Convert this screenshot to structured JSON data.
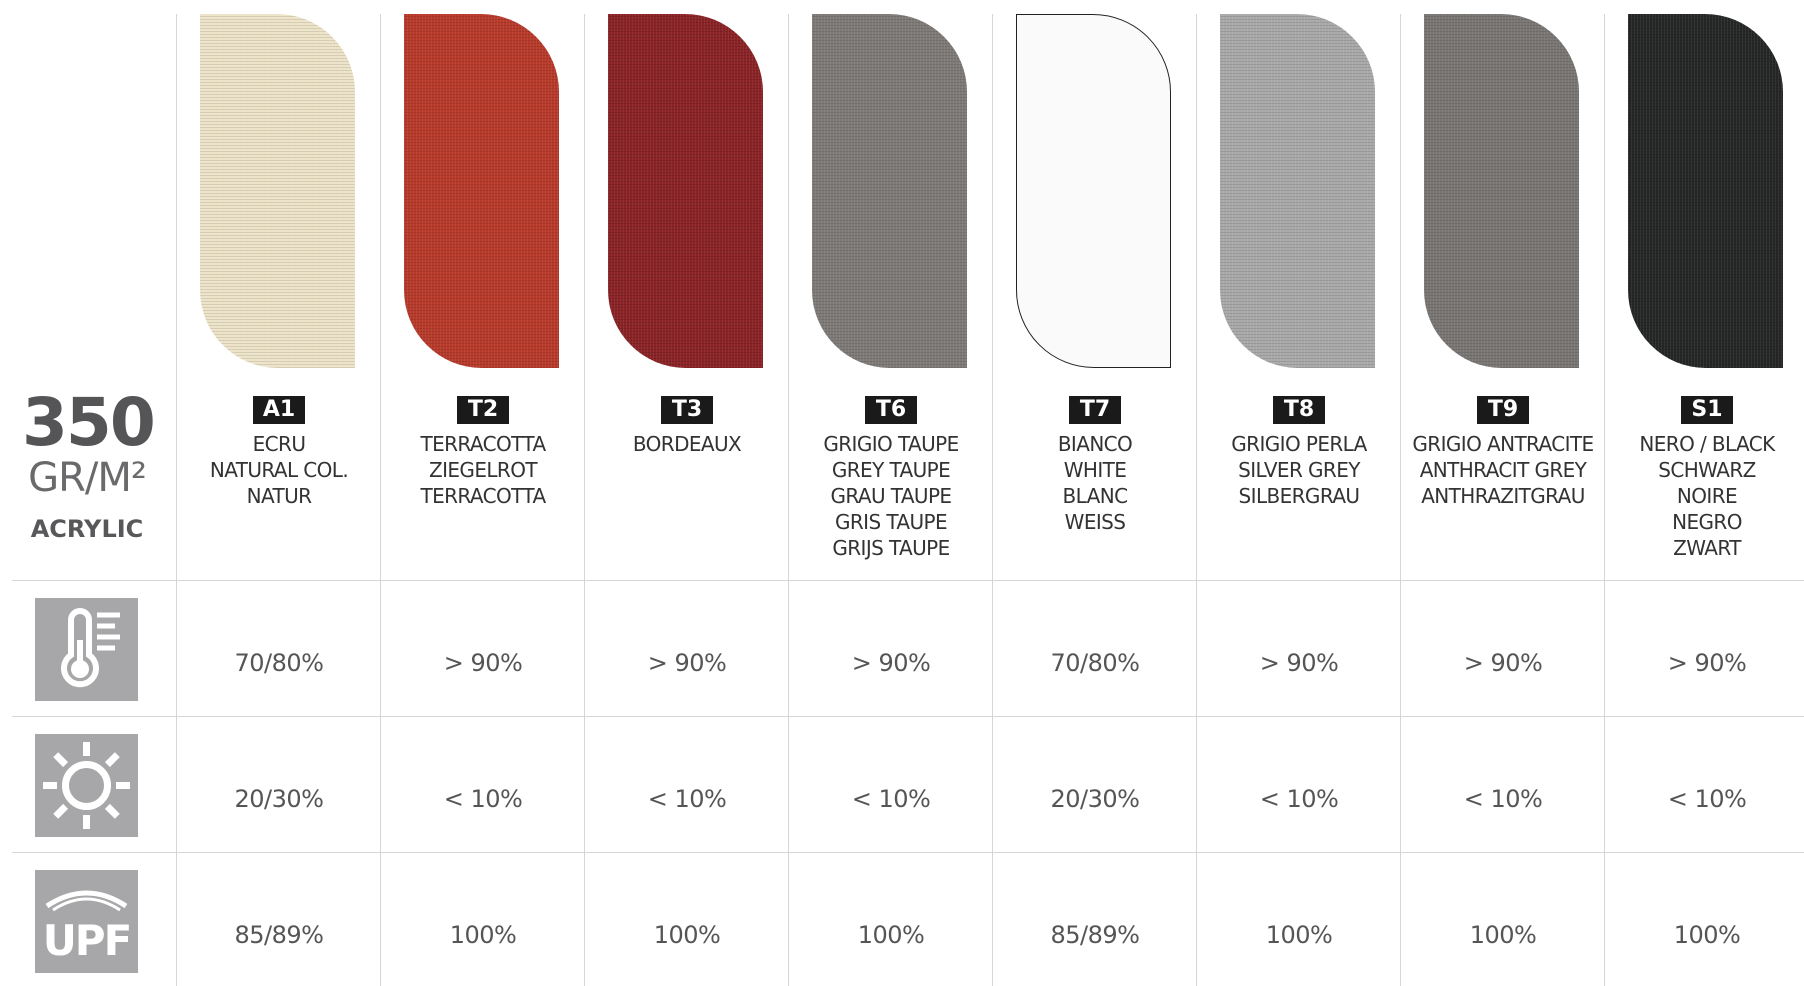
{
  "header": {
    "weight": "350",
    "unit": "GR/M²",
    "material": "ACRYLIC"
  },
  "colors": {
    "grid_line": "#d6d6d6",
    "icon_bg": "#a7a7a9",
    "code_badge": "#1a1a1a"
  },
  "rows": {
    "heat_icon": "thermometer-icon",
    "light_icon": "sun-icon",
    "uv_icon": "upf-icon",
    "upf_label": "UPF"
  },
  "swatches": [
    {
      "code": "A1",
      "color": "#ede3c8",
      "names": [
        "ECRU",
        "NATURAL COL.",
        "NATUR"
      ],
      "heat": "70/80%",
      "light": "20/30%",
      "upf": "85/89%"
    },
    {
      "code": "T2",
      "color": "#b83a2a",
      "names": [
        "TERRACOTTA",
        "ZIEGELROT",
        "TERRACOTTA"
      ],
      "heat": "> 90%",
      "light": "< 10%",
      "upf": "100%"
    },
    {
      "code": "T3",
      "color": "#8a2226",
      "names": [
        "BORDEAUX"
      ],
      "heat": "> 90%",
      "light": "< 10%",
      "upf": "100%"
    },
    {
      "code": "T6",
      "color": "#7e7a77",
      "names": [
        "GRIGIO TAUPE",
        "GREY TAUPE",
        "GRAU TAUPE",
        "GRIS TAUPE",
        "GRIJS TAUPE"
      ],
      "heat": "> 90%",
      "light": "< 10%",
      "upf": "100%"
    },
    {
      "code": "T7",
      "color": "#fafafa",
      "names": [
        "BIANCO",
        "WHITE",
        "BLANC",
        "WEISS"
      ],
      "heat": "70/80%",
      "light": "20/30%",
      "upf": "85/89%"
    },
    {
      "code": "T8",
      "color": "#a9a9a9",
      "names": [
        "GRIGIO PERLA",
        "SILVER GREY",
        "SILBERGRAU"
      ],
      "heat": "> 90%",
      "light": "< 10%",
      "upf": "100%"
    },
    {
      "code": "T9",
      "color": "#797674",
      "names": [
        "GRIGIO ANTRACITE",
        "ANTHRACIT GREY",
        "ANTHRAZITGRAU"
      ],
      "heat": "> 90%",
      "light": "< 10%",
      "upf": "100%"
    },
    {
      "code": "S1",
      "color": "#252727",
      "names": [
        "NERO / BLACK",
        "SCHWARZ",
        "NOIRE",
        "NEGRO",
        "ZWART"
      ],
      "heat": "> 90%",
      "light": "< 10%",
      "upf": "100%"
    }
  ]
}
